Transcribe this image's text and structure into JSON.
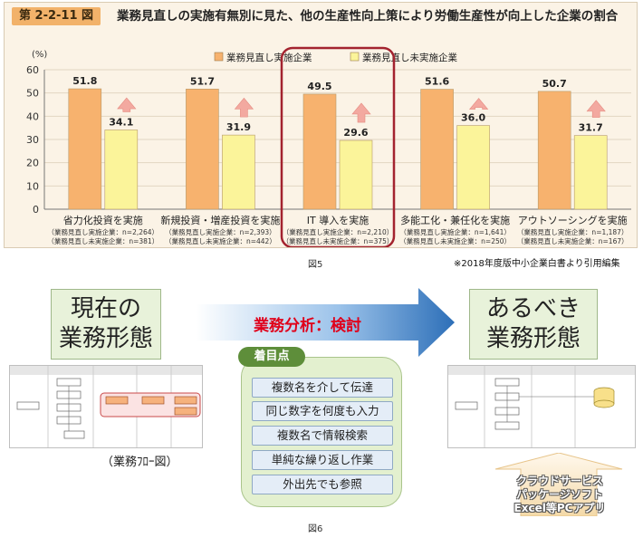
{
  "figure5": {
    "number": "第 2-2-11 図",
    "title": "業務見直しの実施有無別に見た、他の生産性向上策により労働生産性が向上した企業の割合",
    "caption": "図5",
    "source": "※2018年度版中小企業白書より引用編集"
  },
  "chart_data": {
    "type": "bar",
    "unit": "(%)",
    "ylim": [
      0,
      60
    ],
    "yticks": [
      0,
      10,
      20,
      30,
      40,
      50,
      60
    ],
    "grid": true,
    "legend_position": "top-center",
    "categories": [
      {
        "label": "省力化投資を実施",
        "n_done": "（業務見直し実施企業：n=2,264）",
        "n_not": "（業務見直し未実施企業：n=381）"
      },
      {
        "label": "新規投資・増産投資を実施",
        "n_done": "（業務見直し実施企業：n=2,393）",
        "n_not": "（業務見直し未実施企業：n=442）"
      },
      {
        "label": "IT 導入を実施",
        "n_done": "（業務見直し実施企業：n=2,210）",
        "n_not": "（業務見直し未実施企業：n=375）"
      },
      {
        "label": "多能工化・兼任化を実施",
        "n_done": "（業務見直し実施企業：n=1,641）",
        "n_not": "（業務見直し未実施企業：n=250）"
      },
      {
        "label": "アウトソーシングを実施",
        "n_done": "（業務見直し実施企業：n=1,187）",
        "n_not": "（業務見直し未実施企業：n=167）"
      }
    ],
    "series": [
      {
        "name": "業務見直し実施企業",
        "color": "#f7b26e",
        "values": [
          51.8,
          51.7,
          49.5,
          51.6,
          50.7
        ]
      },
      {
        "name": "業務見直し未実施企業",
        "color": "#fbf49a",
        "values": [
          34.1,
          31.9,
          29.6,
          36.0,
          31.7
        ]
      }
    ],
    "highlight_index": 2,
    "highlight_color": "#a3232f"
  },
  "figure6": {
    "current_state": [
      "現在の",
      "業務形態"
    ],
    "ideal_state": [
      "あるべき",
      "業務形態"
    ],
    "process_label": "業務分析：検討",
    "focus_title": "着目点",
    "focus_items": [
      "複数名を介して伝達",
      "同じ数字を何度も入力",
      "複数名で情報検索",
      "単純な繰り返し作業",
      "外出先でも参照"
    ],
    "flow_caption": "（業務ﾌﾛｰ図）",
    "tools": [
      "クラウドサービス",
      "パッケージソフト",
      "Excel等PCアプリ"
    ],
    "caption": "図6"
  }
}
